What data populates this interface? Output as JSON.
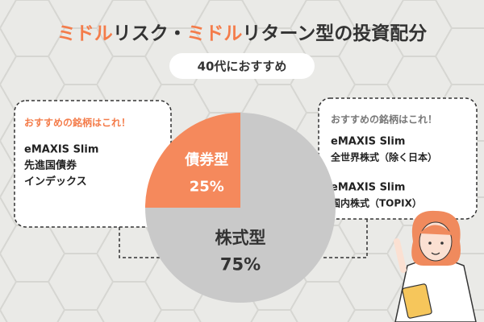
{
  "chart_data": {
    "type": "pie",
    "title": [
      "ミドル",
      "リスク・",
      "ミドル",
      "リターン型の投資配分"
    ],
    "subtitle": "40代におすすめ",
    "categories": [
      "債券型",
      "株式型"
    ],
    "values": [
      25,
      75
    ],
    "value_labels": [
      "25%",
      "75%"
    ],
    "colors": [
      "#f5895c",
      "#c9c9c9"
    ],
    "annotations": [
      {
        "title": "おすすめの銘柄はこれ！",
        "lines": [
          "eMAXIS Slim",
          "先進国債券",
          "インデックス"
        ]
      },
      {
        "title": "おすすめの銘柄はこれ！",
        "lines": [
          "eMAXIS Slim",
          "全世界株式（除く日本）",
          "eMAXIS Slim",
          "国内株式（TOPIX）"
        ]
      }
    ]
  }
}
